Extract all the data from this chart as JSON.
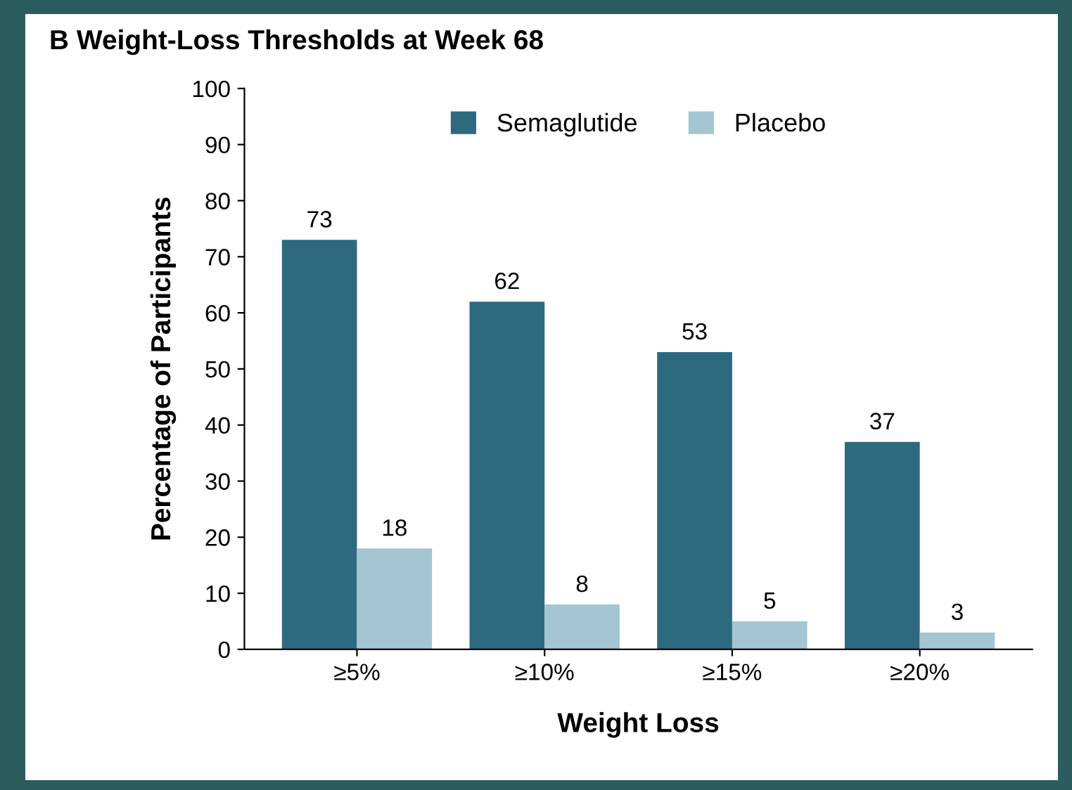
{
  "chart_data": {
    "type": "bar",
    "title": "B Weight-Loss Thresholds at Week 68",
    "xlabel": "Weight Loss",
    "ylabel": "Percentage of Participants",
    "categories": [
      "≥5%",
      "≥10%",
      "≥15%",
      "≥20%"
    ],
    "series": [
      {
        "name": "Semaglutide",
        "color": "#2d6a7f",
        "values": [
          73,
          62,
          53,
          37
        ]
      },
      {
        "name": "Placebo",
        "color": "#a4c5d2",
        "values": [
          18,
          8,
          5,
          3
        ]
      }
    ],
    "ylim": [
      0,
      100
    ],
    "yticks": [
      0,
      10,
      20,
      30,
      40,
      50,
      60,
      70,
      80,
      90,
      100
    ],
    "data_labels": true,
    "legend": "top",
    "grid": false
  }
}
